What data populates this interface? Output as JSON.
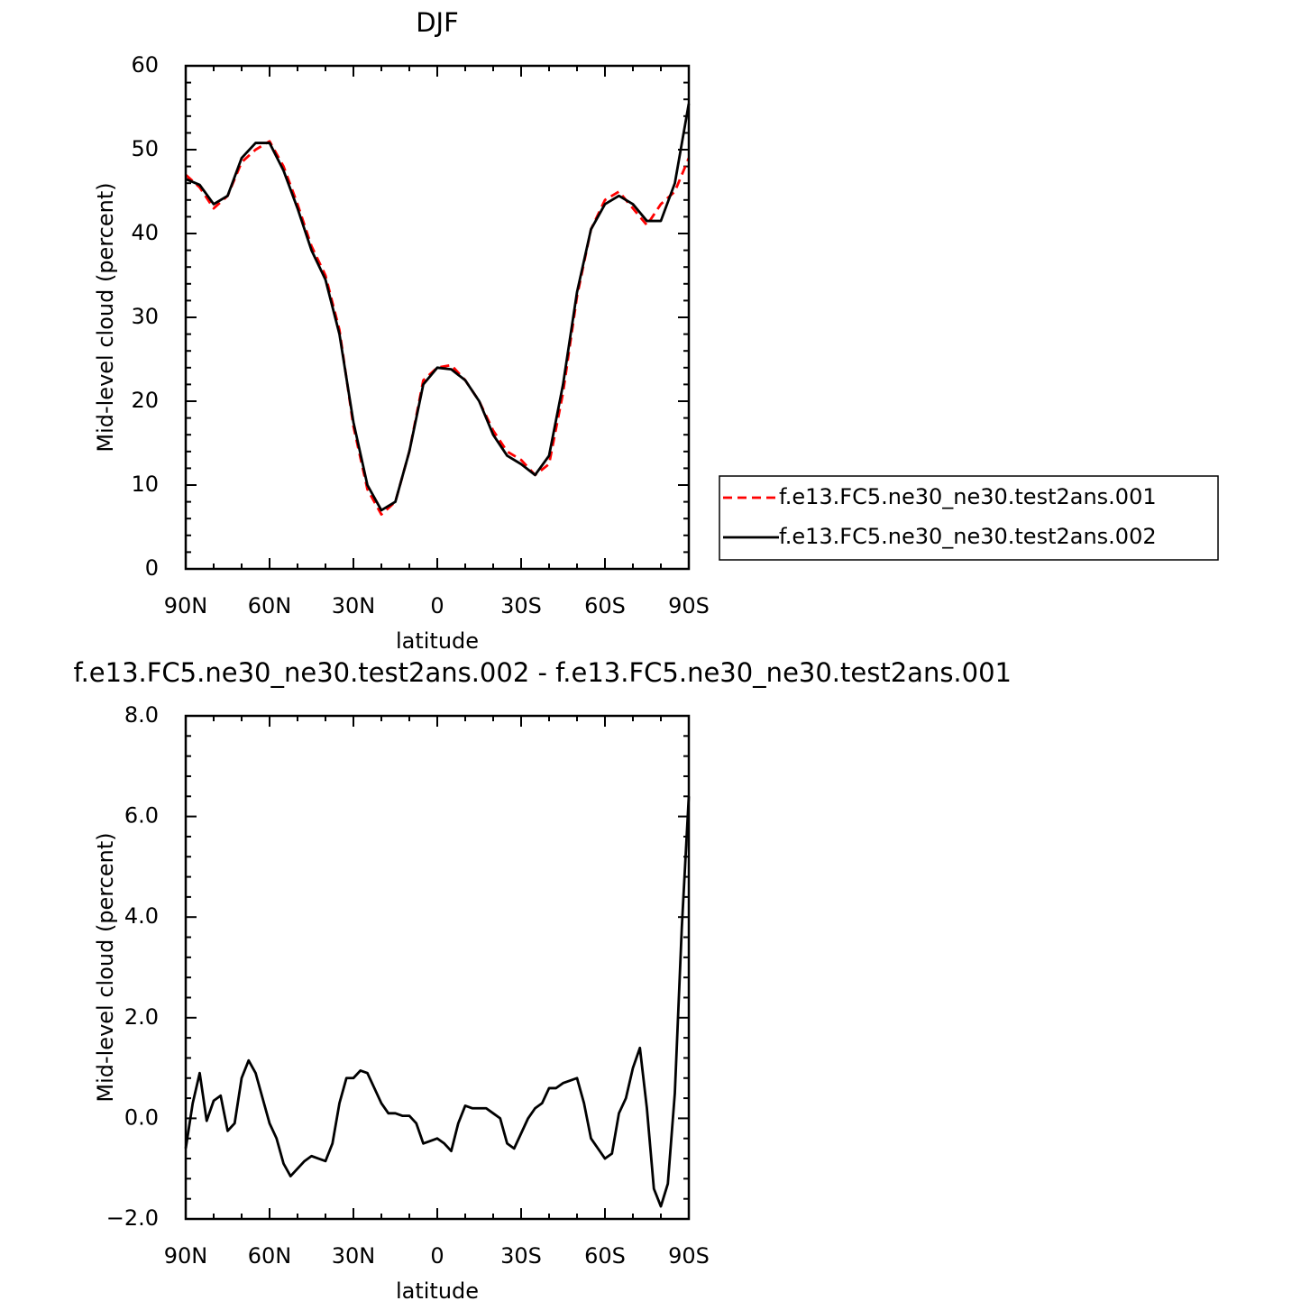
{
  "chart_data": [
    {
      "type": "line",
      "title": "DJF",
      "x_label": "latitude",
      "y_label": "Mid-level cloud (percent)",
      "x": [
        90,
        85,
        80,
        75,
        70,
        65,
        60,
        55,
        50,
        45,
        40,
        35,
        30,
        25,
        20,
        15,
        10,
        5,
        0,
        -5,
        -10,
        -15,
        -20,
        -25,
        -30,
        -35,
        -40,
        -45,
        -50,
        -55,
        -60,
        -65,
        -70,
        -75,
        -80,
        -85,
        -90
      ],
      "series": [
        {
          "name": "f.e13.FC5.ne30_ne30.test2ans.001",
          "color": "#ff0000",
          "dash": true,
          "values": [
            47,
            45.5,
            43,
            44.5,
            48.5,
            50,
            51,
            48,
            43.5,
            38.5,
            35,
            28.5,
            17,
            9.5,
            6.5,
            8,
            14,
            22.5,
            24,
            24.3,
            22.5,
            20,
            16.5,
            14,
            13,
            11.2,
            12.5,
            21,
            32.5,
            40.5,
            44,
            45,
            43,
            41,
            43.5,
            45,
            49
          ]
        },
        {
          "name": "f.e13.FC5.ne30_ne30.test2ans.002",
          "color": "#000000",
          "dash": false,
          "values": [
            46.5,
            45.8,
            43.5,
            44.5,
            49,
            50.8,
            50.8,
            47.5,
            43,
            38,
            34.5,
            28,
            17.5,
            10,
            7,
            8,
            14,
            22,
            24,
            23.8,
            22.5,
            20,
            16,
            13.5,
            12.5,
            11.2,
            13.5,
            22,
            33,
            40.5,
            43.5,
            44.5,
            43.5,
            41.5,
            41.5,
            46,
            55.5
          ]
        }
      ],
      "xlim": [
        90,
        -90
      ],
      "xticks": [
        {
          "value": 90,
          "label": "90N"
        },
        {
          "value": 60,
          "label": "60N"
        },
        {
          "value": 30,
          "label": "30N"
        },
        0,
        {
          "value": -30,
          "label": "30S"
        },
        {
          "value": -60,
          "label": "60S"
        },
        {
          "value": -90,
          "label": "90S"
        }
      ],
      "ylim": [
        0,
        60
      ],
      "yticks": [
        0,
        10,
        20,
        30,
        40,
        50,
        60
      ],
      "legend": "right"
    },
    {
      "type": "line",
      "title": "f.e13.FC5.ne30_ne30.test2ans.002 - f.e13.FC5.ne30_ne30.test2ans.001",
      "x_label": "latitude",
      "y_label": "Mid-level cloud (percent)",
      "x": [
        90,
        87.5,
        85,
        82.5,
        80,
        77.5,
        75,
        72.5,
        70,
        67.5,
        65,
        62.5,
        60,
        57.5,
        55,
        52.5,
        50,
        47.5,
        45,
        42.5,
        40,
        37.5,
        35,
        32.5,
        30,
        27.5,
        25,
        22.5,
        20,
        17.5,
        15,
        12.5,
        10,
        7.5,
        5,
        2.5,
        0,
        -2.5,
        -5,
        -7.5,
        -10,
        -12.5,
        -15,
        -17.5,
        -20,
        -22.5,
        -25,
        -27.5,
        -30,
        -32.5,
        -35,
        -37.5,
        -40,
        -42.5,
        -45,
        -47.5,
        -50,
        -52.5,
        -55,
        -57.5,
        -60,
        -62.5,
        -65,
        -67.5,
        -70,
        -72.5,
        -75,
        -77.5,
        -80,
        -82.5,
        -85,
        -87.5,
        -90
      ],
      "series": [
        {
          "color": "#000000",
          "dash": false,
          "values": [
            -0.6,
            0.3,
            0.9,
            -0.05,
            0.35,
            0.45,
            -0.25,
            -0.1,
            0.8,
            1.15,
            0.9,
            0.4,
            -0.1,
            -0.4,
            -0.9,
            -1.15,
            -1.0,
            -0.85,
            -0.75,
            -0.8,
            -0.85,
            -0.5,
            0.3,
            0.8,
            0.8,
            0.95,
            0.9,
            0.6,
            0.3,
            0.1,
            0.1,
            0.05,
            0.05,
            -0.1,
            -0.5,
            -0.45,
            -0.4,
            -0.5,
            -0.65,
            -0.1,
            0.25,
            0.2,
            0.2,
            0.2,
            0.1,
            0.0,
            -0.5,
            -0.6,
            -0.3,
            0.0,
            0.2,
            0.3,
            0.6,
            0.6,
            0.7,
            0.75,
            0.8,
            0.3,
            -0.4,
            -0.6,
            -0.8,
            -0.7,
            0.1,
            0.4,
            1.0,
            1.4,
            0.2,
            -1.4,
            -1.75,
            -1.3,
            0.5,
            3.8,
            6.4
          ]
        }
      ],
      "xlim": [
        90,
        -90
      ],
      "xticks": [
        {
          "value": 90,
          "label": "90N"
        },
        {
          "value": 60,
          "label": "60N"
        },
        {
          "value": 30,
          "label": "30N"
        },
        0,
        {
          "value": -30,
          "label": "30S"
        },
        {
          "value": -60,
          "label": "60S"
        },
        {
          "value": -90,
          "label": "90S"
        }
      ],
      "ylim": [
        -2,
        8
      ],
      "yticks": [
        {
          "value": -2,
          "label": "−2.0"
        },
        {
          "value": 0,
          "label": "0.0"
        },
        {
          "value": 2,
          "label": "2.0"
        },
        {
          "value": 4,
          "label": "4.0"
        },
        {
          "value": 6,
          "label": "6.0"
        },
        {
          "value": 8,
          "label": "8.0"
        }
      ]
    }
  ]
}
